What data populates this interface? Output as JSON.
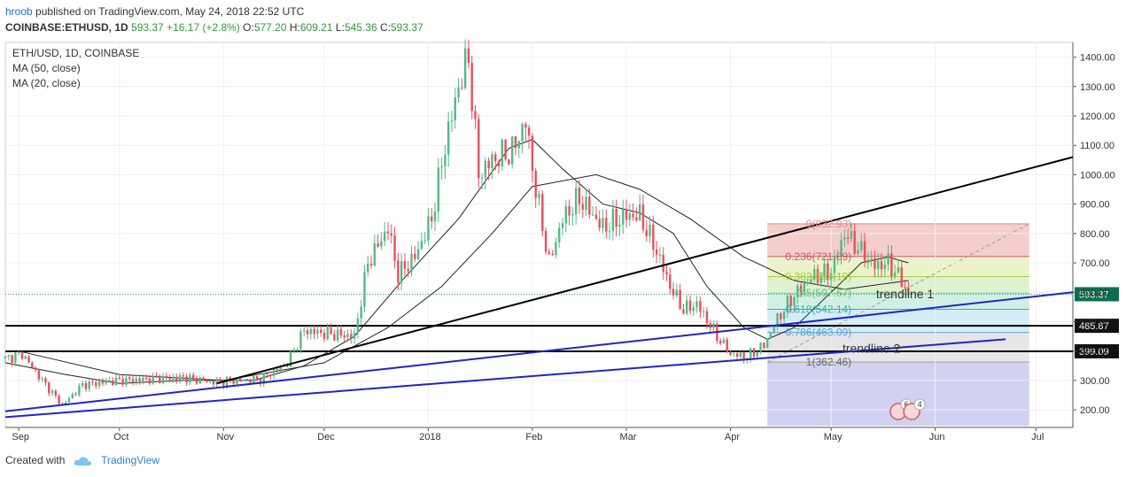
{
  "header": {
    "author": "hroob",
    "published": "published on TradingView.com, May 24, 2018 22:52 UTC",
    "symbol": "COINBASE:ETHUSD, 1D",
    "last": "593.37",
    "change": "+16.17 (+2.8%)",
    "o_label": "O:",
    "o": "577.20",
    "h_label": "H:",
    "h": "609.21",
    "l_label": "L:",
    "l": "545.36",
    "c_label": "C:",
    "c": "593.37"
  },
  "legend": {
    "title": "ETH/USD, 1D, COINBASE",
    "ma50": "MA (50, close)",
    "ma20": "MA (20, close)"
  },
  "footer": {
    "created_with": "Created with",
    "brand": "TradingView"
  },
  "colors": {
    "up": "#53b987",
    "down": "#eb4d5c",
    "trend_black": "#000000",
    "trend_blue": "#1f24c9",
    "last_price_tag": "#0b6e4f"
  },
  "chart_data": {
    "type": "candlestick",
    "title": "ETH/USD, 1D, COINBASE",
    "xlabel": "",
    "ylabel": "",
    "ylim": [
      140,
      1450
    ],
    "y_ticks": [
      200,
      300,
      400,
      500,
      600,
      700,
      800,
      900,
      1000,
      1100,
      1200,
      1300,
      1400
    ],
    "y_tick_labels": [
      "200.00",
      "300.00",
      "400.00",
      "500.00",
      "600.00",
      "700.00",
      "800.00",
      "900.00",
      "1000.00",
      "1100.00",
      "1200.00",
      "1300.00",
      "1400.00"
    ],
    "x_ticks": [
      "Sep",
      "Oct",
      "Nov",
      "Dec",
      "2018",
      "Feb",
      "Mar",
      "Apr",
      "May",
      "Jun",
      "Jul"
    ],
    "x_tick_dates": [
      "2017-09-01",
      "2017-10-01",
      "2017-11-01",
      "2017-12-01",
      "2018-01-01",
      "2018-02-01",
      "2018-03-01",
      "2018-04-01",
      "2018-05-01",
      "2018-06-01",
      "2018-07-01"
    ],
    "date_range": [
      "2017-08-28",
      "2018-07-12"
    ],
    "price_path": [
      [
        "2017-08-28",
        375
      ],
      [
        "2017-09-02",
        390
      ],
      [
        "2017-09-08",
        300
      ],
      [
        "2017-09-14",
        215
      ],
      [
        "2017-09-20",
        285
      ],
      [
        "2017-10-01",
        300
      ],
      [
        "2017-10-12",
        305
      ],
      [
        "2017-10-20",
        310
      ],
      [
        "2017-10-28",
        295
      ],
      [
        "2017-11-05",
        300
      ],
      [
        "2017-11-12",
        305
      ],
      [
        "2017-11-20",
        360
      ],
      [
        "2017-11-25",
        470
      ],
      [
        "2017-12-01",
        460
      ],
      [
        "2017-12-10",
        450
      ],
      [
        "2017-12-14",
        700
      ],
      [
        "2017-12-20",
        820
      ],
      [
        "2017-12-23",
        660
      ],
      [
        "2017-12-28",
        720
      ],
      [
        "2018-01-02",
        850
      ],
      [
        "2018-01-06",
        1100
      ],
      [
        "2018-01-10",
        1300
      ],
      [
        "2018-01-13",
        1400
      ],
      [
        "2018-01-16",
        1000
      ],
      [
        "2018-01-20",
        1050
      ],
      [
        "2018-01-26",
        1080
      ],
      [
        "2018-01-30",
        1180
      ],
      [
        "2018-02-02",
        950
      ],
      [
        "2018-02-06",
        700
      ],
      [
        "2018-02-10",
        850
      ],
      [
        "2018-02-15",
        920
      ],
      [
        "2018-02-22",
        820
      ],
      [
        "2018-03-01",
        860
      ],
      [
        "2018-03-05",
        860
      ],
      [
        "2018-03-10",
        740
      ],
      [
        "2018-03-14",
        620
      ],
      [
        "2018-03-18",
        540
      ],
      [
        "2018-03-22",
        560
      ],
      [
        "2018-03-28",
        450
      ],
      [
        "2018-04-01",
        390
      ],
      [
        "2018-04-06",
        380
      ],
      [
        "2018-04-11",
        420
      ],
      [
        "2018-04-15",
        510
      ],
      [
        "2018-04-20",
        590
      ],
      [
        "2018-04-25",
        650
      ],
      [
        "2018-05-01",
        670
      ],
      [
        "2018-05-05",
        800
      ],
      [
        "2018-05-09",
        750
      ],
      [
        "2018-05-14",
        690
      ],
      [
        "2018-05-18",
        700
      ],
      [
        "2018-05-22",
        640
      ],
      [
        "2018-05-24",
        593
      ]
    ],
    "ma_20_path": [
      [
        "2017-08-28",
        360
      ],
      [
        "2017-09-15",
        320
      ],
      [
        "2017-10-01",
        290
      ],
      [
        "2017-10-20",
        300
      ],
      [
        "2017-11-10",
        300
      ],
      [
        "2017-11-25",
        350
      ],
      [
        "2017-12-10",
        450
      ],
      [
        "2017-12-25",
        650
      ],
      [
        "2018-01-10",
        850
      ],
      [
        "2018-01-25",
        1090
      ],
      [
        "2018-02-01",
        1120
      ],
      [
        "2018-02-10",
        1020
      ],
      [
        "2018-02-22",
        900
      ],
      [
        "2018-03-05",
        870
      ],
      [
        "2018-03-15",
        800
      ],
      [
        "2018-03-25",
        620
      ],
      [
        "2018-04-05",
        480
      ],
      [
        "2018-04-12",
        440
      ],
      [
        "2018-04-20",
        480
      ],
      [
        "2018-05-01",
        600
      ],
      [
        "2018-05-10",
        700
      ],
      [
        "2018-05-18",
        720
      ],
      [
        "2018-05-24",
        700
      ]
    ],
    "ma_50_path": [
      [
        "2017-09-01",
        400
      ],
      [
        "2017-10-01",
        320
      ],
      [
        "2017-11-01",
        300
      ],
      [
        "2017-12-01",
        360
      ],
      [
        "2017-12-20",
        480
      ],
      [
        "2018-01-05",
        620
      ],
      [
        "2018-01-20",
        800
      ],
      [
        "2018-02-01",
        960
      ],
      [
        "2018-02-20",
        1000
      ],
      [
        "2018-03-05",
        950
      ],
      [
        "2018-03-20",
        850
      ],
      [
        "2018-04-05",
        720
      ],
      [
        "2018-04-20",
        640
      ],
      [
        "2018-05-05",
        610
      ],
      [
        "2018-05-24",
        640
      ]
    ],
    "horizontal_lines": [
      {
        "value": 485.87,
        "label": "485.87"
      },
      {
        "value": 399.09,
        "label": "399.09"
      }
    ],
    "last_price": {
      "value": 593.37,
      "label": "593.37"
    },
    "trendlines": [
      {
        "name": "black",
        "from": [
          "2017-10-30",
          290
        ],
        "to": [
          "2018-07-12",
          1060
        ],
        "color": "#000000"
      },
      {
        "name": "blue-1",
        "from": [
          "2017-08-28",
          195
        ],
        "to": [
          "2018-07-12",
          600
        ],
        "color": "#1f24c9"
      },
      {
        "name": "blue-2",
        "from": [
          "2017-08-28",
          175
        ],
        "to": [
          "2018-06-22",
          440
        ],
        "color": "#1f24c9"
      }
    ],
    "trendline_labels": [
      {
        "text": "trendline 1",
        "at": [
          "2018-05-23",
          580
        ]
      },
      {
        "text": "trendline 2",
        "at": [
          "2018-05-13",
          395
        ]
      }
    ],
    "fib": {
      "from_date": "2018-04-12",
      "to_date": "2018-06-29",
      "levels": [
        {
          "ratio": 0,
          "value": 832.93,
          "label": "0(832.93)",
          "fill": "#f2c4c4",
          "line": "#e08a8a"
        },
        {
          "ratio": 0.236,
          "value": 721.89,
          "label": "0.236(721.89)",
          "fill": "#e8f2c0",
          "line": "#d0556a"
        },
        {
          "ratio": 0.382,
          "value": 653.19,
          "label": "0.382(653.19)",
          "fill": "#d8f0c8",
          "line": "#a7c944"
        },
        {
          "ratio": 0.5,
          "value": 597.67,
          "label": "0.5(597.67)",
          "fill": "#c8ede0",
          "line": "#63c07a"
        },
        {
          "ratio": 0.618,
          "value": 542.14,
          "label": "0.618(542.14)",
          "fill": "#cfe9f4",
          "line": "#3bb0a8"
        },
        {
          "ratio": 0.786,
          "value": 463.09,
          "label": "0.786(463.09)",
          "fill": "#e2e2e2",
          "line": "#5aa2d8"
        },
        {
          "ratio": 1,
          "value": 362.46,
          "label": "1(362.46)",
          "fill": "#c9c9f0",
          "line": "#999999"
        }
      ],
      "bottom_value": 145
    },
    "events": [
      {
        "date": "2018-05-21",
        "count": "6"
      },
      {
        "date": "2018-05-25",
        "count": "4"
      }
    ]
  }
}
